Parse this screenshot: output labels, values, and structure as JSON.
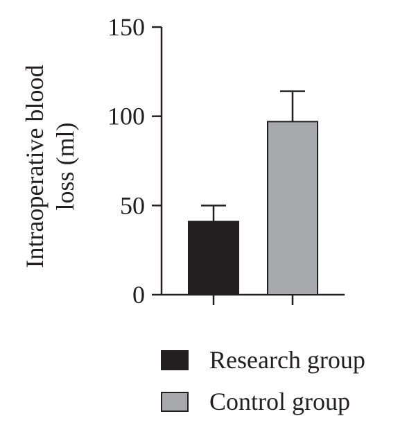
{
  "chart_data": {
    "type": "bar",
    "categories": [
      "Research group",
      "Control group"
    ],
    "values": [
      41,
      97
    ],
    "errors": [
      9,
      17
    ],
    "colors": [
      "#231f20",
      "#a7a9ac"
    ],
    "ylabel_line1": "Intraoperative blood",
    "ylabel_line2": "loss (ml)",
    "xlabel": "",
    "ylim": [
      0,
      150
    ],
    "yticks": [
      0,
      50,
      100,
      150
    ],
    "ytick_labels": [
      "0",
      "50",
      "100",
      "150"
    ],
    "legend": [
      {
        "label": "Research group",
        "color": "#231f20"
      },
      {
        "label": "Control group",
        "color": "#a7a9ac"
      }
    ],
    "legend_position": "bottom",
    "grid": false
  }
}
